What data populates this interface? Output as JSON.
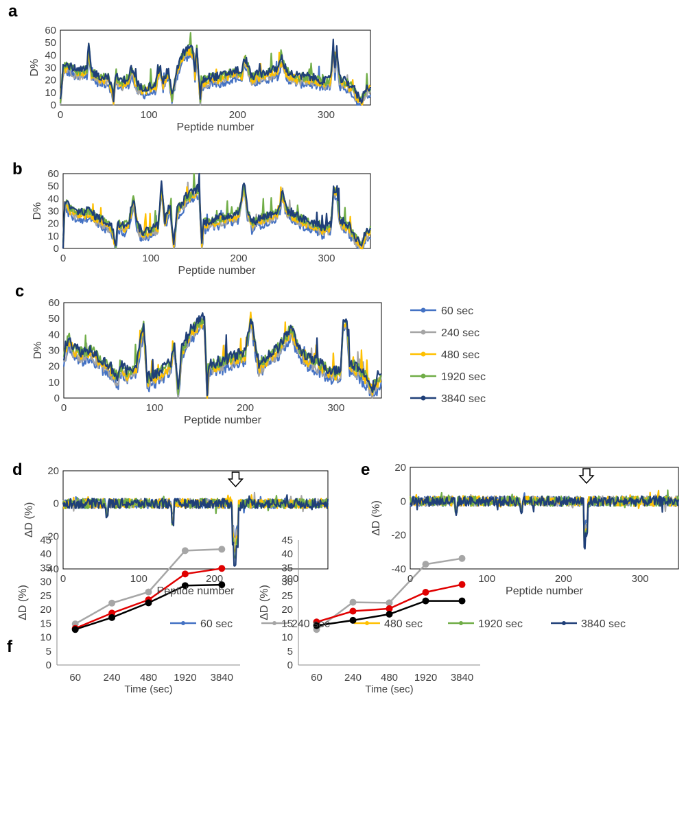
{
  "colors": {
    "s60": "#4472c4",
    "s240": "#a5a5a5",
    "s480": "#ffc000",
    "s1920": "#70ad47",
    "s3840": "#1f3f78",
    "f_gray": "#a6a6a6",
    "f_red": "#e00000",
    "f_black": "#000000"
  },
  "legend": [
    "60 sec",
    "240 sec",
    "480 sec",
    "1920 sec",
    "3840 sec"
  ],
  "chart_data": [
    {
      "panel": "a",
      "type": "line",
      "xlabel": "Peptide number",
      "ylabel": "D%",
      "xlim": [
        0,
        350
      ],
      "ylim": [
        0,
        60
      ],
      "xticks": [
        0,
        100,
        200,
        300
      ],
      "yticks": [
        0,
        10,
        20,
        30,
        40,
        50,
        60
      ],
      "grid": false,
      "series_names": [
        "60 sec",
        "240 sec",
        "480 sec",
        "1920 sec",
        "3840 sec"
      ],
      "profile_points": [
        [
          0,
          3
        ],
        [
          3,
          30
        ],
        [
          10,
          31
        ],
        [
          20,
          26
        ],
        [
          30,
          28
        ],
        [
          32,
          47
        ],
        [
          35,
          26
        ],
        [
          45,
          22
        ],
        [
          55,
          22
        ],
        [
          60,
          5
        ],
        [
          62,
          22
        ],
        [
          70,
          18
        ],
        [
          78,
          22
        ],
        [
          80,
          30
        ],
        [
          85,
          18
        ],
        [
          90,
          13
        ],
        [
          100,
          14
        ],
        [
          108,
          17
        ],
        [
          112,
          30
        ],
        [
          116,
          18
        ],
        [
          122,
          28
        ],
        [
          126,
          5
        ],
        [
          130,
          24
        ],
        [
          135,
          35
        ],
        [
          140,
          42
        ],
        [
          146,
          45
        ],
        [
          150,
          42
        ],
        [
          152,
          25
        ],
        [
          154,
          46
        ],
        [
          158,
          3
        ],
        [
          160,
          19
        ],
        [
          170,
          22
        ],
        [
          180,
          22
        ],
        [
          190,
          25
        ],
        [
          200,
          27
        ],
        [
          205,
          24
        ],
        [
          208,
          38
        ],
        [
          212,
          30
        ],
        [
          215,
          22
        ],
        [
          225,
          24
        ],
        [
          235,
          26
        ],
        [
          245,
          28
        ],
        [
          250,
          37
        ],
        [
          255,
          27
        ],
        [
          260,
          24
        ],
        [
          270,
          22
        ],
        [
          280,
          22
        ],
        [
          290,
          20
        ],
        [
          300,
          18
        ],
        [
          305,
          20
        ],
        [
          308,
          46
        ],
        [
          310,
          28
        ],
        [
          312,
          44
        ],
        [
          315,
          20
        ],
        [
          322,
          18
        ],
        [
          330,
          14
        ],
        [
          335,
          7
        ],
        [
          340,
          3
        ],
        [
          345,
          13
        ],
        [
          350,
          14
        ]
      ]
    },
    {
      "panel": "b",
      "type": "line",
      "xlabel": "Peptide number",
      "ylabel": "D%",
      "xlim": [
        0,
        350
      ],
      "ylim": [
        0,
        60
      ],
      "xticks": [
        0,
        100,
        200,
        300
      ],
      "yticks": [
        0,
        10,
        20,
        30,
        40,
        50,
        60
      ],
      "grid": false,
      "series_names": [
        "60 sec",
        "240 sec",
        "480 sec",
        "1920 sec",
        "3840 sec"
      ],
      "profile_points": [
        [
          0,
          2
        ],
        [
          2,
          38
        ],
        [
          10,
          30
        ],
        [
          20,
          28
        ],
        [
          30,
          30
        ],
        [
          35,
          26
        ],
        [
          45,
          22
        ],
        [
          55,
          18
        ],
        [
          60,
          2
        ],
        [
          62,
          20
        ],
        [
          70,
          18
        ],
        [
          75,
          22
        ],
        [
          80,
          40
        ],
        [
          85,
          18
        ],
        [
          90,
          12
        ],
        [
          100,
          15
        ],
        [
          108,
          18
        ],
        [
          112,
          50
        ],
        [
          116,
          22
        ],
        [
          122,
          34
        ],
        [
          126,
          3
        ],
        [
          130,
          30
        ],
        [
          140,
          40
        ],
        [
          150,
          46
        ],
        [
          155,
          48
        ],
        [
          158,
          2
        ],
        [
          160,
          20
        ],
        [
          170,
          22
        ],
        [
          180,
          24
        ],
        [
          190,
          26
        ],
        [
          200,
          28
        ],
        [
          206,
          52
        ],
        [
          210,
          30
        ],
        [
          215,
          20
        ],
        [
          225,
          24
        ],
        [
          235,
          26
        ],
        [
          245,
          30
        ],
        [
          250,
          44
        ],
        [
          255,
          30
        ],
        [
          265,
          26
        ],
        [
          275,
          22
        ],
        [
          285,
          20
        ],
        [
          295,
          16
        ],
        [
          305,
          18
        ],
        [
          308,
          46
        ],
        [
          312,
          47
        ],
        [
          315,
          22
        ],
        [
          325,
          18
        ],
        [
          330,
          12
        ],
        [
          335,
          6
        ],
        [
          340,
          3
        ],
        [
          345,
          12
        ],
        [
          350,
          15
        ]
      ]
    },
    {
      "panel": "c",
      "type": "line",
      "xlabel": "Peptide number",
      "ylabel": "D%",
      "xlim": [
        0,
        350
      ],
      "ylim": [
        0,
        60
      ],
      "xticks": [
        0,
        100,
        200,
        300
      ],
      "yticks": [
        0,
        10,
        20,
        30,
        40,
        50,
        60
      ],
      "grid": false,
      "series_names": [
        "60 sec",
        "240 sec",
        "480 sec",
        "1920 sec",
        "3840 sec"
      ],
      "profile_points": [
        [
          0,
          26
        ],
        [
          5,
          38
        ],
        [
          10,
          32
        ],
        [
          20,
          28
        ],
        [
          30,
          30
        ],
        [
          40,
          24
        ],
        [
          50,
          20
        ],
        [
          60,
          12
        ],
        [
          62,
          20
        ],
        [
          70,
          16
        ],
        [
          80,
          20
        ],
        [
          88,
          46
        ],
        [
          92,
          12
        ],
        [
          100,
          14
        ],
        [
          110,
          18
        ],
        [
          118,
          22
        ],
        [
          122,
          35
        ],
        [
          126,
          2
        ],
        [
          130,
          30
        ],
        [
          140,
          42
        ],
        [
          150,
          48
        ],
        [
          155,
          50
        ],
        [
          158,
          2
        ],
        [
          160,
          20
        ],
        [
          170,
          22
        ],
        [
          180,
          24
        ],
        [
          190,
          26
        ],
        [
          200,
          28
        ],
        [
          206,
          52
        ],
        [
          210,
          38
        ],
        [
          215,
          20
        ],
        [
          225,
          26
        ],
        [
          235,
          30
        ],
        [
          245,
          38
        ],
        [
          250,
          44
        ],
        [
          260,
          30
        ],
        [
          270,
          24
        ],
        [
          280,
          22
        ],
        [
          290,
          18
        ],
        [
          300,
          16
        ],
        [
          305,
          18
        ],
        [
          308,
          50
        ],
        [
          312,
          48
        ],
        [
          315,
          22
        ],
        [
          325,
          18
        ],
        [
          335,
          12
        ],
        [
          340,
          6
        ],
        [
          345,
          10
        ],
        [
          350,
          14
        ]
      ]
    },
    {
      "panel": "d",
      "type": "line",
      "xlabel": "Peptide number",
      "ylabel": "ΔD (%)",
      "xlim": [
        0,
        350
      ],
      "ylim": [
        -40,
        20
      ],
      "xticks": [
        0,
        100,
        200,
        300
      ],
      "yticks": [
        -40,
        -20,
        0,
        20
      ],
      "grid": false,
      "series_names": [
        "60 sec",
        "240 sec",
        "480 sec",
        "1920 sec",
        "3840 sec"
      ],
      "annotation": "arrow at peptide ~228",
      "dips": [
        [
          58,
          -8
        ],
        [
          145,
          -13
        ],
        [
          225,
          -24
        ],
        [
          227,
          -37
        ],
        [
          230,
          -26
        ]
      ]
    },
    {
      "panel": "e",
      "type": "line",
      "xlabel": "Peptide number",
      "ylabel": "ΔD (%)",
      "xlim": [
        0,
        350
      ],
      "ylim": [
        -40,
        20
      ],
      "xticks": [
        0,
        100,
        200,
        300
      ],
      "yticks": [
        -40,
        -20,
        0,
        20
      ],
      "grid": false,
      "series_names": [
        "60 sec",
        "240 sec",
        "480 sec",
        "1920 sec",
        "3840 sec"
      ],
      "annotation": "arrow at peptide ~230",
      "dips": [
        [
          60,
          -7
        ],
        [
          145,
          -6
        ],
        [
          228,
          -27
        ],
        [
          230,
          -20
        ]
      ]
    },
    {
      "panel": "f-left",
      "type": "line",
      "xlabel": "Time (sec)",
      "ylabel": "ΔD (%)",
      "categories": [
        "60",
        "240",
        "480",
        "1920",
        "3840"
      ],
      "ylim": [
        0,
        45
      ],
      "yticks": [
        0,
        5,
        10,
        15,
        20,
        25,
        30,
        35,
        40,
        45
      ],
      "grid": false,
      "series": [
        {
          "color": "gray",
          "values": [
            14.8,
            22.3,
            26.3,
            41.2,
            41.7
          ]
        },
        {
          "color": "red",
          "values": [
            13.2,
            18.7,
            23.5,
            32.8,
            34.8
          ]
        },
        {
          "color": "black",
          "values": [
            12.8,
            17.1,
            22.4,
            28.6,
            28.9
          ]
        }
      ]
    },
    {
      "panel": "f-right",
      "type": "line",
      "xlabel": "Time (sec)",
      "ylabel": "ΔD (%)",
      "categories": [
        "60",
        "240",
        "480",
        "1920",
        "3840"
      ],
      "ylim": [
        0,
        45
      ],
      "yticks": [
        0,
        5,
        10,
        15,
        20,
        25,
        30,
        35,
        40,
        45
      ],
      "grid": false,
      "series": [
        {
          "color": "gray",
          "values": [
            12.8,
            22.6,
            22.4,
            36.3,
            38.4
          ]
        },
        {
          "color": "red",
          "values": [
            15.5,
            19.4,
            20.3,
            26.2,
            29.0
          ]
        },
        {
          "color": "black",
          "values": [
            14.2,
            16.1,
            18.3,
            23.1,
            23.1
          ]
        }
      ]
    }
  ]
}
